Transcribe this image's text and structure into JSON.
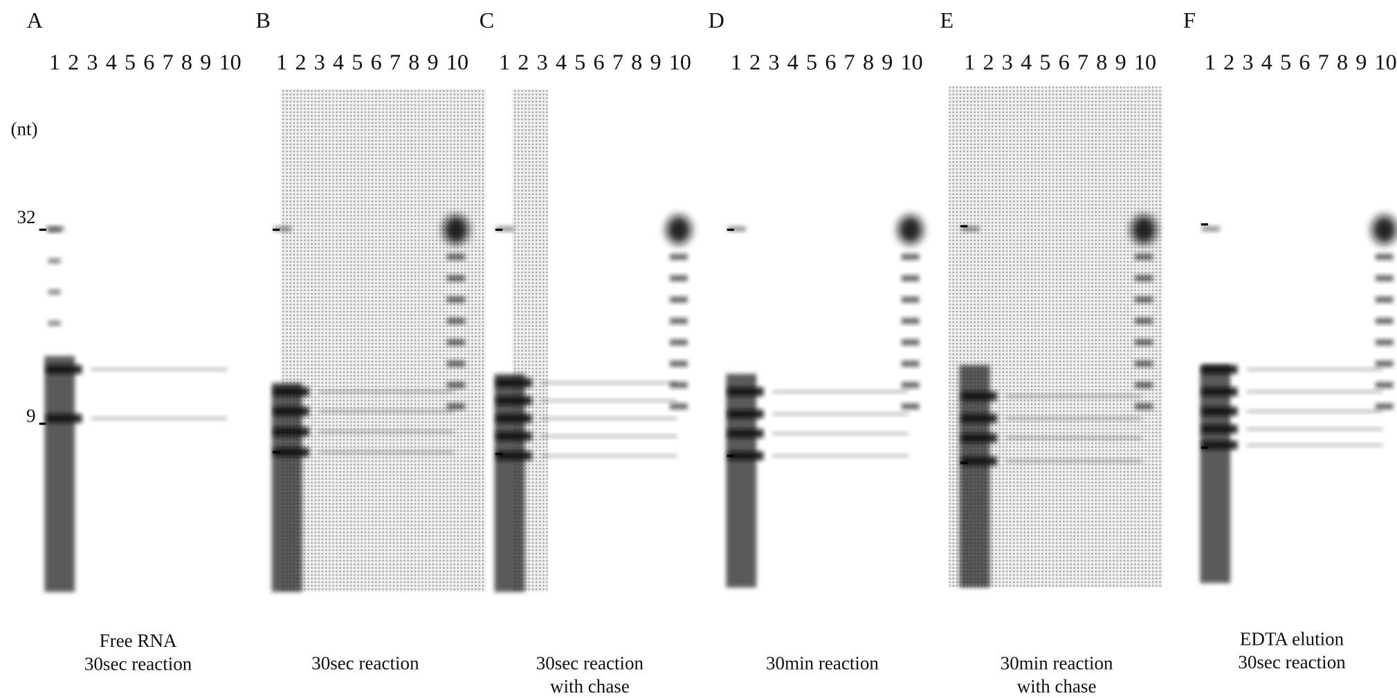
{
  "markers": {
    "unit": "(nt)",
    "upper": "32",
    "lower": "9"
  },
  "panels": [
    {
      "label": "A",
      "lanes": [
        "1",
        "2",
        "3",
        "4",
        "5",
        "6",
        "7",
        "8",
        "9",
        "10"
      ],
      "caption": [
        "Free RNA",
        "30sec reaction"
      ]
    },
    {
      "label": "B",
      "lanes": [
        "1",
        "2",
        "3",
        "4",
        "5",
        "6",
        "7",
        "8",
        "9",
        "10"
      ],
      "caption": [
        "30sec reaction"
      ]
    },
    {
      "label": "C",
      "lanes": [
        "1",
        "2",
        "3",
        "4",
        "5",
        "6",
        "7",
        "8",
        "9",
        "10"
      ],
      "caption": [
        "30sec reaction",
        "with chase"
      ]
    },
    {
      "label": "D",
      "lanes": [
        "1",
        "2",
        "3",
        "4",
        "5",
        "6",
        "7",
        "8",
        "9",
        "10"
      ],
      "caption": [
        "30min reaction"
      ]
    },
    {
      "label": "E",
      "lanes": [
        "1",
        "2",
        "3",
        "4",
        "5",
        "6",
        "7",
        "8",
        "9",
        "10"
      ],
      "caption": [
        "30min reaction",
        "with chase"
      ]
    },
    {
      "label": "F",
      "lanes": [
        "1",
        "2",
        "3",
        "4",
        "5",
        "6",
        "7",
        "8",
        "9",
        "10"
      ],
      "caption": [
        "EDTA elution",
        "30sec reaction"
      ]
    }
  ]
}
